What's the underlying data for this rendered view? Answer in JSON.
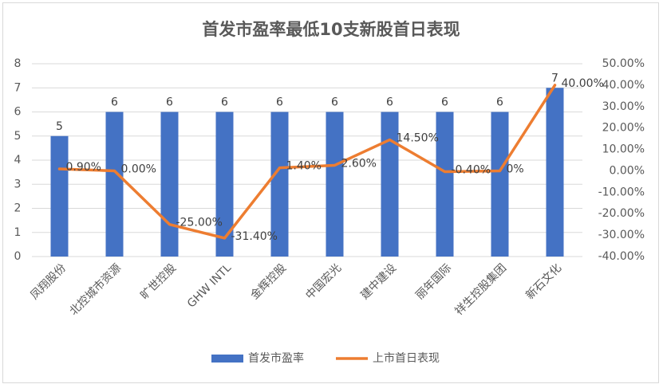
{
  "chart_data": {
    "type": "bar",
    "title": "首发市盈率最低10支新股首日表现",
    "categories": [
      "凤翔股份",
      "北控城市资源",
      "旷世控股",
      "GHW INTL",
      "金辉控股",
      "中国宏光",
      "建中建设",
      "丽年国际",
      "祥生控股集团",
      "新石文化"
    ],
    "series": [
      {
        "name": "首发市盈率",
        "type": "bar",
        "color": "#4472c4",
        "values": [
          5,
          6,
          6,
          6,
          6,
          6,
          6,
          6,
          6,
          7
        ]
      },
      {
        "name": "上市首日表现",
        "type": "line",
        "axis": "y2",
        "color": "#ed7d31",
        "values": [
          0.9,
          0,
          -25,
          -31.4,
          1.4,
          2.6,
          14.5,
          -0.4,
          0,
          40
        ],
        "value_labels": [
          "0.90%",
          "0.00%",
          "-25.00%",
          "-31.40%",
          "1.40%",
          "2.60%",
          "14.50%",
          "-0.40%",
          "0%",
          "40.00%"
        ]
      }
    ],
    "ylim": [
      0,
      8
    ],
    "yticks": [
      0,
      1,
      2,
      3,
      4,
      5,
      6,
      7,
      8
    ],
    "y2lim": [
      -40,
      50
    ],
    "y2ticks": [
      {
        "value": -40,
        "label": "-40.00%"
      },
      {
        "value": -30,
        "label": "-30.00%"
      },
      {
        "value": -20,
        "label": "-20.00%"
      },
      {
        "value": -10,
        "label": "-10.00%"
      },
      {
        "value": 0,
        "label": "0.00%"
      },
      {
        "value": 10,
        "label": "10.00%"
      },
      {
        "value": 20,
        "label": "20.00%"
      },
      {
        "value": 30,
        "label": "30.00%"
      },
      {
        "value": 40,
        "label": "40.00%"
      },
      {
        "value": 50,
        "label": "50.00%"
      }
    ],
    "grid": true,
    "legend": "bottom"
  }
}
